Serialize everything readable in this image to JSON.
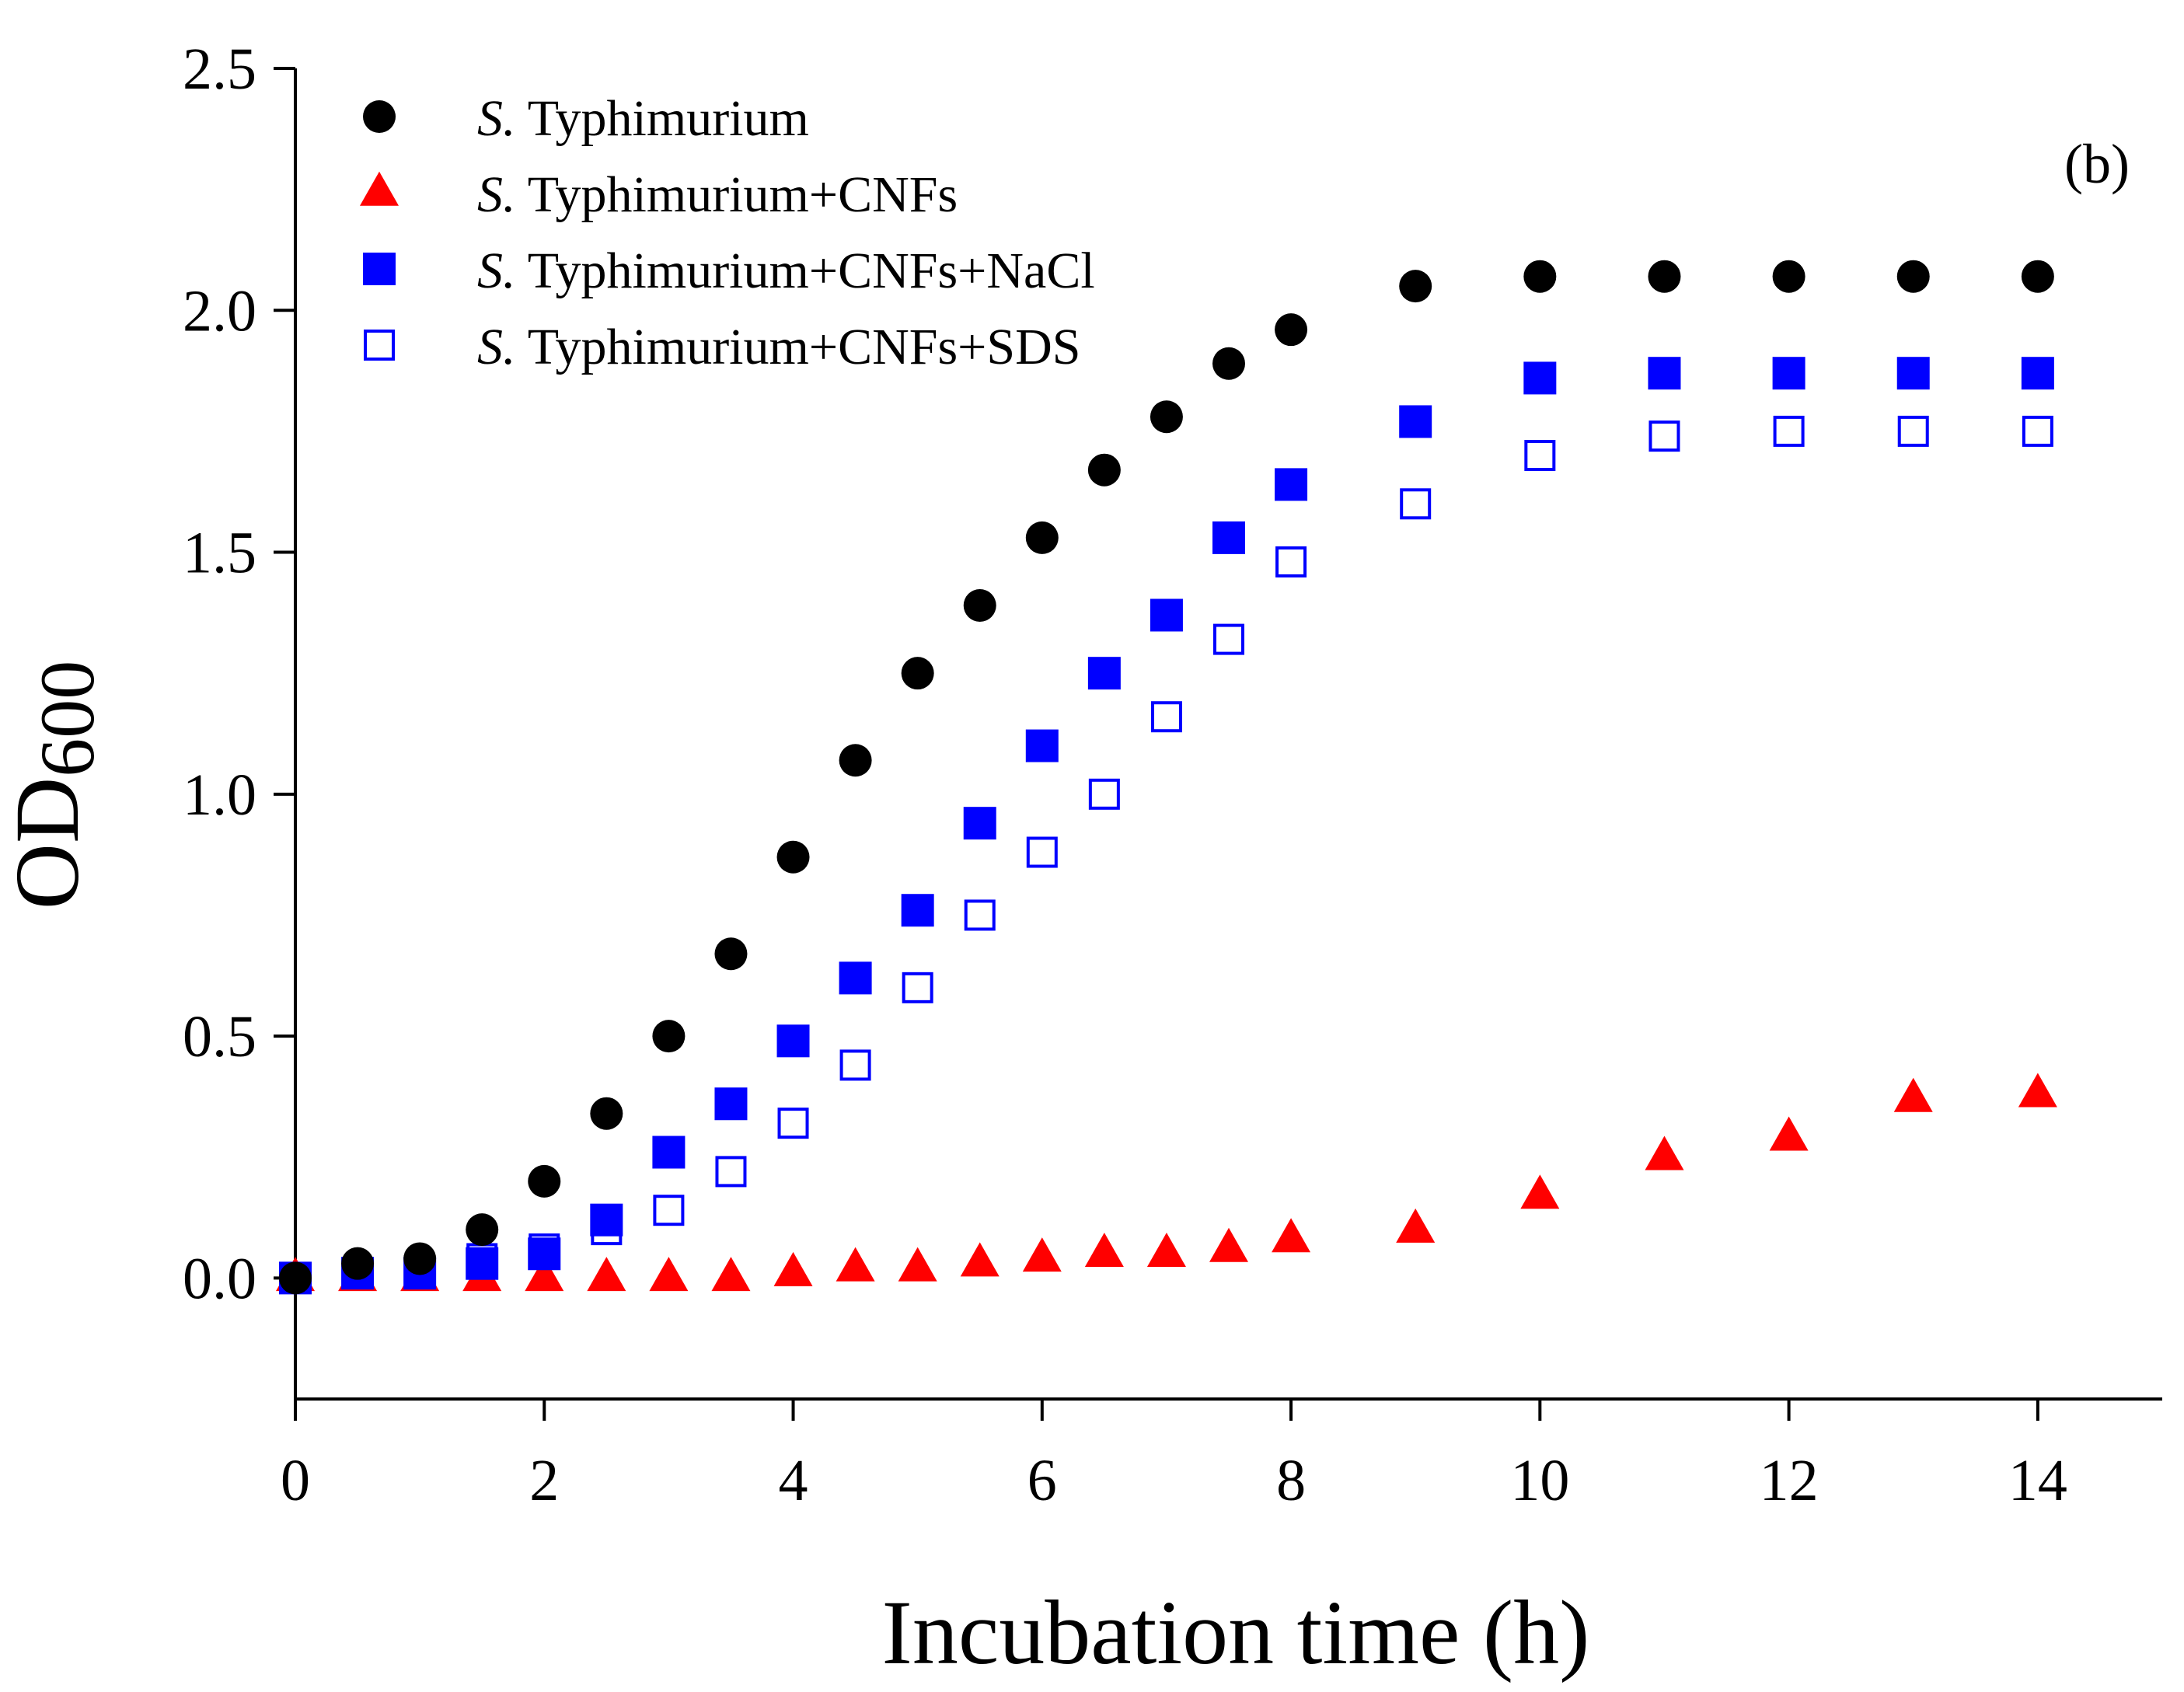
{
  "chart_data": {
    "type": "scatter",
    "panel_label": "(b)",
    "xlabel": "Incubation time (h)",
    "ylabel_main": "OD",
    "ylabel_sub": "600",
    "xlim": [
      0,
      15
    ],
    "ylim": [
      -0.25,
      2.5
    ],
    "xticks": [
      0,
      2,
      4,
      6,
      8,
      10,
      12,
      14
    ],
    "xtick_labels": [
      "0",
      "2",
      "4",
      "6",
      "8",
      "10",
      "12",
      "14"
    ],
    "yticks": [
      0.0,
      0.5,
      1.0,
      1.5,
      2.0,
      2.5
    ],
    "ytick_labels": [
      "0.0",
      "0.5",
      "1.0",
      "1.5",
      "2.0",
      "2.5"
    ],
    "grid": false,
    "legend_position": "top-left",
    "x": [
      0,
      0.5,
      1,
      1.5,
      2,
      2.5,
      3,
      3.5,
      4,
      4.5,
      5,
      5.5,
      6,
      6.5,
      7,
      7.5,
      8,
      9,
      10,
      11,
      12,
      13,
      14
    ],
    "series": [
      {
        "legend_italic": "S.",
        "legend_rest": " Typhimurium",
        "marker": "circle",
        "color": "#000000",
        "filled": true,
        "values": [
          0.0,
          0.03,
          0.04,
          0.1,
          0.2,
          0.34,
          0.5,
          0.67,
          0.87,
          1.07,
          1.25,
          1.39,
          1.53,
          1.67,
          1.78,
          1.89,
          1.96,
          2.05,
          2.07,
          2.07,
          2.07,
          2.07,
          2.07
        ]
      },
      {
        "legend_italic": "S.",
        "legend_rest": " Typhimurium+CNFs",
        "marker": "triangle",
        "color": "#ff0000",
        "filled": true,
        "values": [
          0.0,
          0.0,
          0.0,
          0.0,
          0.0,
          0.0,
          0.0,
          0.0,
          0.01,
          0.02,
          0.02,
          0.03,
          0.04,
          0.05,
          0.05,
          0.06,
          0.08,
          0.1,
          0.17,
          0.25,
          0.29,
          0.37,
          0.38
        ]
      },
      {
        "legend_italic": "S.",
        "legend_rest": " Typhimurium+CNFs+NaCl",
        "marker": "square",
        "color": "#0000ff",
        "filled": true,
        "values": [
          0.0,
          0.01,
          0.01,
          0.03,
          0.05,
          0.12,
          0.26,
          0.36,
          0.49,
          0.62,
          0.76,
          0.94,
          1.1,
          1.25,
          1.37,
          1.53,
          1.64,
          1.77,
          1.86,
          1.87,
          1.87,
          1.87,
          1.87
        ]
      },
      {
        "legend_italic": "S.",
        "legend_rest": " Typhimurium+CNFs+SDS",
        "marker": "square",
        "color": "#0000ff",
        "filled": false,
        "values": [
          0.0,
          0.01,
          0.01,
          0.04,
          0.06,
          0.1,
          0.14,
          0.22,
          0.32,
          0.44,
          0.6,
          0.75,
          0.88,
          1.0,
          1.16,
          1.32,
          1.48,
          1.6,
          1.7,
          1.74,
          1.75,
          1.75,
          1.75
        ]
      }
    ]
  }
}
